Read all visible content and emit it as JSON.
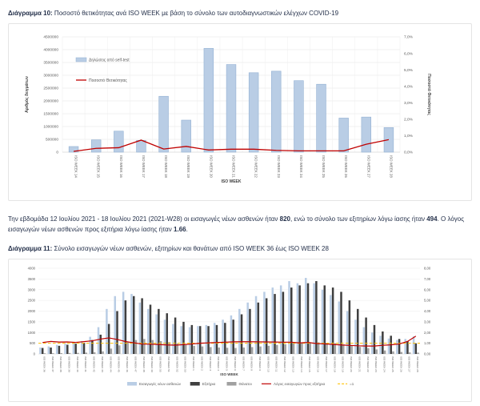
{
  "heading10": {
    "prefix": "Διάγραμμα 10:",
    "rest": " Ποσοστό θετικότητας ανά ISO WEEK με βάση το σύνολο των αυτοδιαγνωστικών ελέγχων COVID-19"
  },
  "heading11": {
    "prefix": "Διάγραμμα 11:",
    "rest": " Σύνολο εισαγωγών νέων ασθενών, εξιτηρίων και θανάτων από ISO WEEK 36 έως ISO WEEK 28"
  },
  "paragraph": {
    "segments": [
      {
        "text": "Την εβδομάδα 12 Ιουλίου 2021 - 18 Ιουλίου 2021 (2021-W28) οι εισαγωγές νέων ασθενών ήταν ",
        "bold": false
      },
      {
        "text": "820",
        "bold": true
      },
      {
        "text": ", ενώ το σύνολο των εξιτηρίων λόγω ίασης ήταν ",
        "bold": false
      },
      {
        "text": "494",
        "bold": true
      },
      {
        "text": ". Ο λόγος εισαγωγών νέων ασθενών προς εξιτήρια λόγω ίασης ήταν ",
        "bold": false
      },
      {
        "text": "1.66",
        "bold": true
      },
      {
        "text": ".",
        "bold": false
      }
    ]
  },
  "chart_data": [
    {
      "type": "bar",
      "xlabel": "ISO WEEK",
      "categories": [
        "ISO WEEK 14",
        "ISO WEEK 15",
        "ISO WEEK 16",
        "ISO WEEK 17",
        "ISO WEEK 18",
        "ISO WEEK 19",
        "ISO WEEK 20",
        "ISO WEEK 21",
        "ISO WEEK 22",
        "ISO WEEK 23",
        "ISO WEEK 24",
        "ISO WEEK 25",
        "ISO WEEK 26",
        "ISO WEEK 27",
        "ISO WEEK 28"
      ],
      "bars": {
        "name": "Δηλώσεις από self-test",
        "color": "#b9cde5",
        "border": "#93b1d3",
        "values": [
          220000,
          480000,
          820000,
          460000,
          2180000,
          1250000,
          4050000,
          3420000,
          3100000,
          3160000,
          2790000,
          2650000,
          1330000,
          1370000,
          960000
        ]
      },
      "line": {
        "name": "Ποσοστό Θετικότητας",
        "color": "#c00000",
        "values": [
          0.05,
          0.23,
          0.27,
          0.73,
          0.19,
          0.35,
          0.13,
          0.18,
          0.18,
          0.11,
          0.08,
          0.08,
          0.08,
          0.48,
          0.76
        ]
      },
      "left_axis": {
        "label": "Αριθμός δειγμάτων",
        "min": 0,
        "max": 4500000,
        "step": 500000,
        "ticks": [
          "4500000",
          "4000000",
          "3500000",
          "3000000",
          "2500000",
          "2000000",
          "1500000",
          "1000000",
          "500000",
          "0"
        ]
      },
      "right_axis": {
        "label": "Ποσοστό Θετικότητας",
        "min": 0,
        "max": 7,
        "step": 1,
        "ticks": [
          "7,0%",
          "6,0%",
          "5,0%",
          "4,0%",
          "3,0%",
          "2,0%",
          "1,0%",
          "0,0%"
        ]
      }
    },
    {
      "type": "bar",
      "xlabel": "ISO WEEK",
      "categories": [
        "ISO WEEK 36",
        "ISO WEEK 37",
        "ISO WEEK 38",
        "ISO WEEK 39",
        "ISO WEEK 40",
        "ISO WEEK 41",
        "ISO WEEK 42",
        "ISO WEEK 43",
        "ISO WEEK 44",
        "ISO WEEK 45",
        "ISO WEEK 46",
        "ISO WEEK 47",
        "ISO WEEK 48",
        "ISO WEEK 49",
        "ISO WEEK 50",
        "ISO WEEK 51",
        "ISO WEEK 52",
        "ISO WEEK 53",
        "ISO WEEK 1",
        "ISO WEEK 2",
        "ISO WEEK 3",
        "ISO WEEK 4",
        "ISO WEEK 5",
        "ISO WEEK 6",
        "ISO WEEK 7",
        "ISO WEEK 8",
        "ISO WEEK 9",
        "ISO WEEK 10",
        "ISO WEEK 11",
        "ISO WEEK 12",
        "ISO WEEK 13",
        "ISO WEEK 14",
        "ISO WEEK 15",
        "ISO WEEK 16",
        "ISO WEEK 17",
        "ISO WEEK 18",
        "ISO WEEK 19",
        "ISO WEEK 20",
        "ISO WEEK 21",
        "ISO WEEK 22",
        "ISO WEEK 23",
        "ISO WEEK 24",
        "ISO WEEK 25",
        "ISO WEEK 26",
        "ISO WEEK 27",
        "ISO WEEK 28"
      ],
      "series": [
        {
          "name": "Εισαγωγές νέων ασθενών",
          "color": "#b9cde5",
          "border": "#93b1d3",
          "values": [
            300,
            350,
            420,
            480,
            520,
            600,
            800,
            1250,
            2100,
            2700,
            2900,
            2800,
            2400,
            2100,
            1850,
            1600,
            1400,
            1300,
            1250,
            1300,
            1350,
            1450,
            1600,
            1800,
            2100,
            2400,
            2700,
            2900,
            3100,
            3200,
            3400,
            3300,
            3550,
            3300,
            3000,
            2750,
            2450,
            2000,
            1600,
            1250,
            1000,
            850,
            720,
            650,
            700,
            820
          ]
        },
        {
          "name": "Εξιτήρια",
          "color": "#3f3f3f",
          "border": "#3f3f3f",
          "values": [
            280,
            300,
            380,
            430,
            480,
            520,
            650,
            900,
            1400,
            2000,
            2500,
            2700,
            2600,
            2300,
            2100,
            1900,
            1700,
            1500,
            1350,
            1300,
            1300,
            1350,
            1450,
            1600,
            1850,
            2100,
            2400,
            2600,
            2800,
            2900,
            3100,
            3200,
            3300,
            3400,
            3200,
            3100,
            2900,
            2500,
            2100,
            1700,
            1350,
            1050,
            850,
            700,
            600,
            494
          ]
        },
        {
          "name": "Θάνατοι",
          "color": "#a0a0a0",
          "border": "#a0a0a0",
          "values": [
            30,
            35,
            40,
            45,
            50,
            60,
            80,
            120,
            250,
            400,
            550,
            650,
            700,
            650,
            600,
            550,
            480,
            420,
            380,
            350,
            320,
            300,
            290,
            280,
            300,
            320,
            350,
            380,
            420,
            450,
            500,
            530,
            550,
            540,
            520,
            500,
            450,
            400,
            330,
            270,
            210,
            160,
            120,
            90,
            70,
            60
          ]
        }
      ],
      "line": {
        "name": "Λόγος εισαγωγών προς εξιτήρια",
        "color": "#c00000",
        "values": [
          1.07,
          1.17,
          1.11,
          1.12,
          1.08,
          1.15,
          1.23,
          1.39,
          1.5,
          1.35,
          1.16,
          1.04,
          0.92,
          0.91,
          0.88,
          0.84,
          0.82,
          0.87,
          0.93,
          1.0,
          1.04,
          1.07,
          1.1,
          1.13,
          1.14,
          1.14,
          1.13,
          1.12,
          1.11,
          1.1,
          1.1,
          1.03,
          1.08,
          0.97,
          0.94,
          0.89,
          0.84,
          0.8,
          0.76,
          0.74,
          0.74,
          0.81,
          0.85,
          0.93,
          1.17,
          1.66
        ]
      },
      "ref_line": {
        "name": "=1",
        "color": "#ffc000",
        "value": 1
      },
      "left_axis": {
        "min": 0,
        "max": 4000,
        "step": 500,
        "ticks": [
          "4000",
          "3500",
          "3000",
          "2500",
          "2000",
          "1500",
          "1000",
          "500",
          "0"
        ]
      },
      "right_axis": {
        "min": 0,
        "max": 8,
        "step": 1,
        "ticks": [
          "8,00",
          "7,00",
          "6,00",
          "5,00",
          "4,00",
          "3,00",
          "2,00",
          "1,00",
          "0,00"
        ]
      }
    }
  ]
}
